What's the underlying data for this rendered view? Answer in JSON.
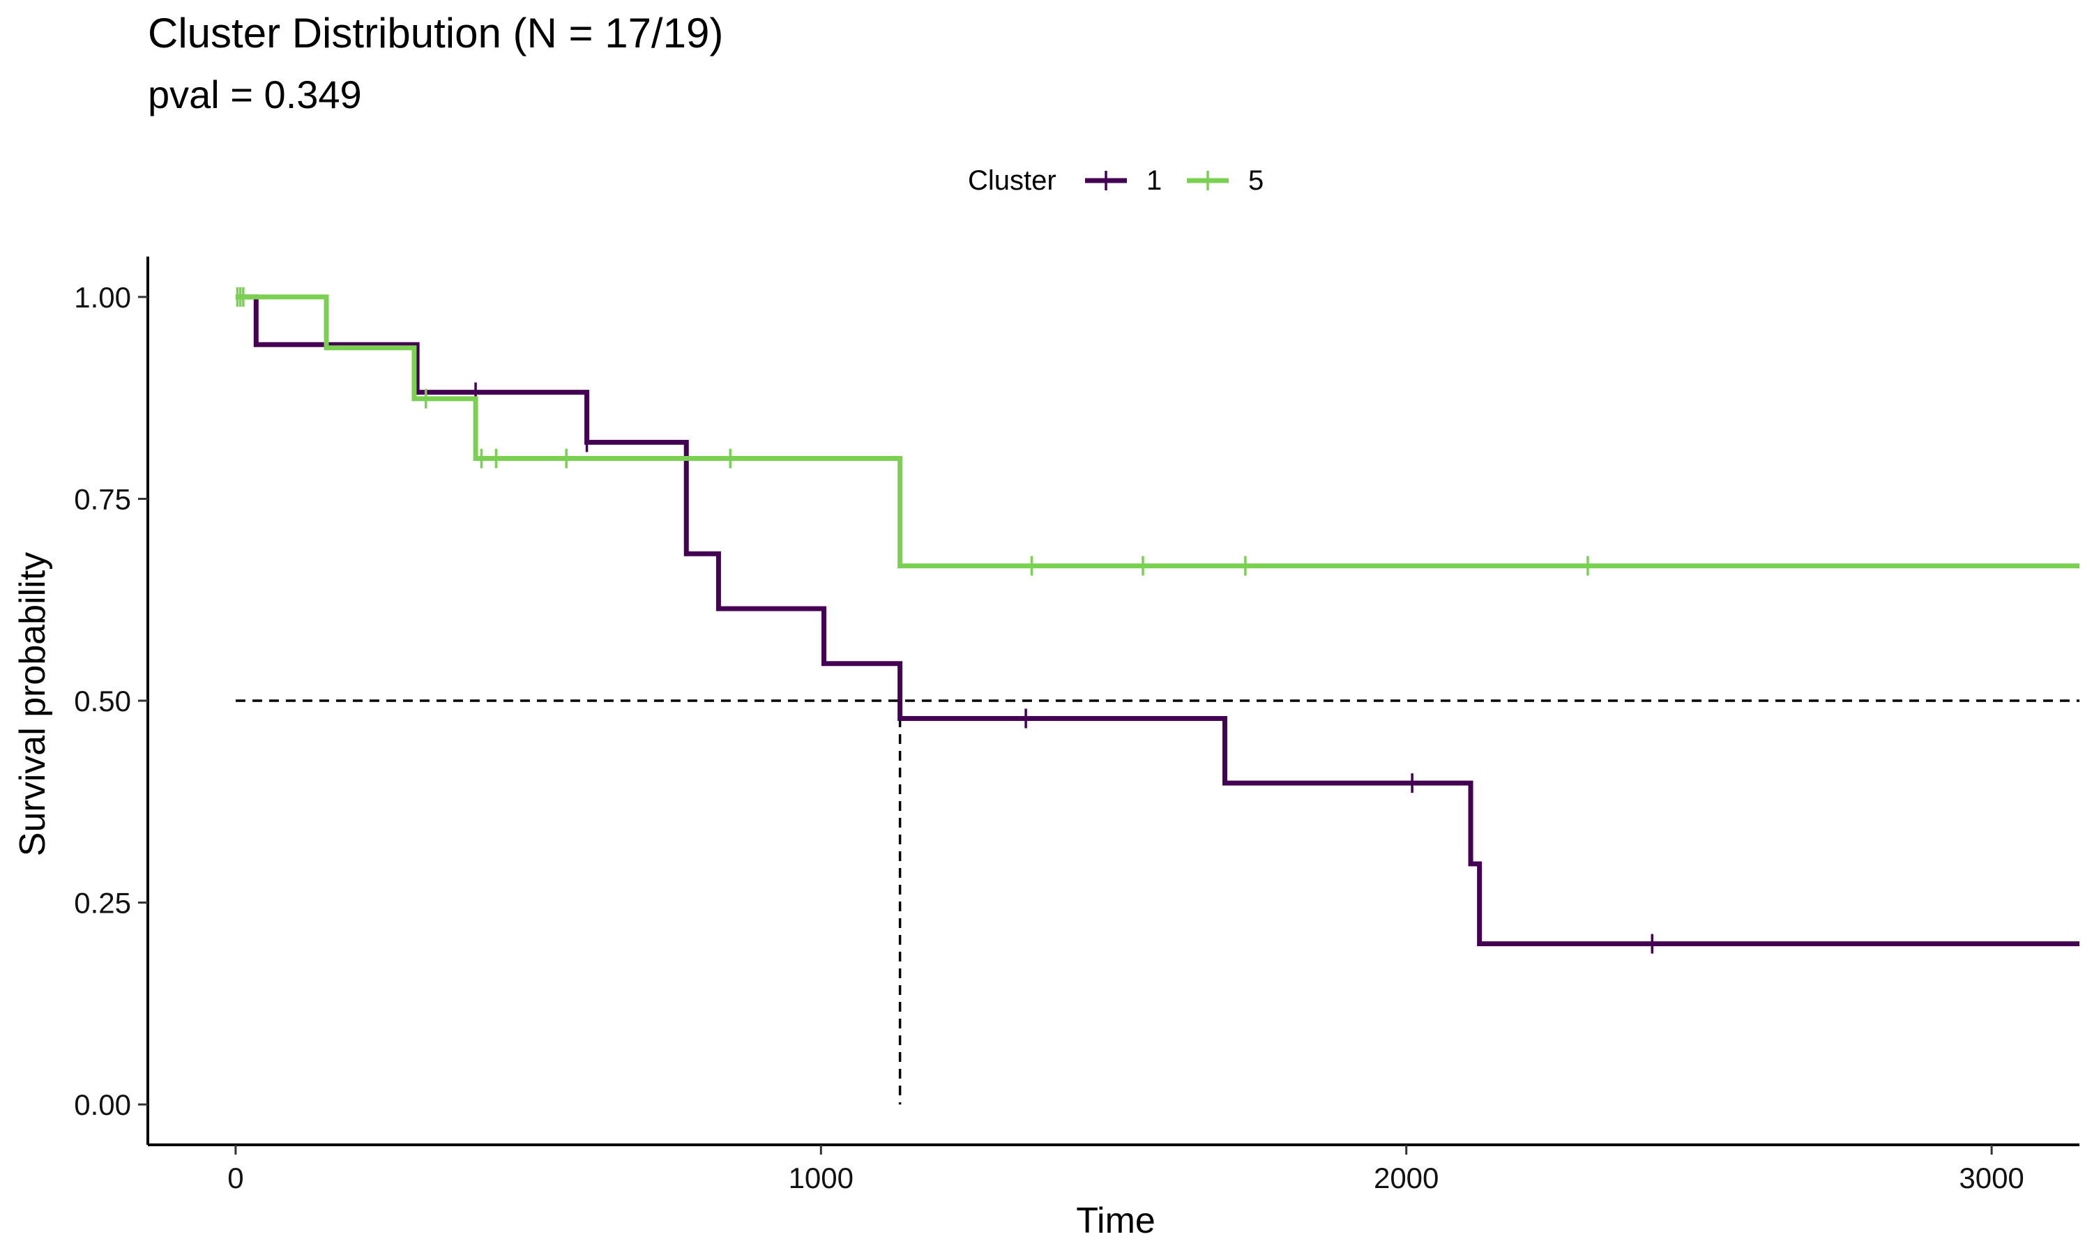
{
  "chart_data": {
    "type": "line",
    "subtype": "kaplan-meier",
    "title": "Cluster Distribution (N = 17/19)",
    "subtitle": "pval = 0.349",
    "xlabel": "Time",
    "ylabel": "Survival probability",
    "xlim": [
      -150,
      3150
    ],
    "ylim": [
      -0.05,
      1.05
    ],
    "x_ticks": [
      0,
      1000,
      2000,
      3000
    ],
    "y_ticks": [
      0.0,
      0.25,
      0.5,
      0.75,
      1.0
    ],
    "x_tick_labels": [
      "0",
      "1000",
      "2000",
      "3000"
    ],
    "y_tick_labels": [
      "0.00",
      "0.25",
      "0.50",
      "0.75",
      "1.00"
    ],
    "grid": false,
    "legend": {
      "title": "Cluster",
      "position": "top"
    },
    "median_line": {
      "y": 0.5,
      "x_end": 3150,
      "drop_x": 1135
    },
    "series": [
      {
        "name": "1",
        "color": "#440154",
        "steps": [
          [
            0,
            1.0
          ],
          [
            35,
            0.941
          ],
          [
            310,
            0.882
          ],
          [
            600,
            0.82
          ],
          [
            770,
            0.682
          ],
          [
            825,
            0.614
          ],
          [
            1005,
            0.546
          ],
          [
            1135,
            0.478
          ],
          [
            1690,
            0.398
          ],
          [
            2110,
            0.298
          ],
          [
            2125,
            0.199
          ],
          [
            3150,
            0.199
          ]
        ],
        "censor": [
          [
            410,
            0.882
          ],
          [
            600,
            0.82
          ],
          [
            1350,
            0.478
          ],
          [
            2010,
            0.398
          ],
          [
            2420,
            0.199
          ]
        ]
      },
      {
        "name": "5",
        "color": "#7AD151",
        "steps": [
          [
            0,
            1.0
          ],
          [
            155,
            0.937
          ],
          [
            305,
            0.874
          ],
          [
            410,
            0.8
          ],
          [
            1135,
            0.667
          ],
          [
            3150,
            0.667
          ]
        ],
        "censor": [
          [
            3,
            1.0
          ],
          [
            8,
            1.0
          ],
          [
            13,
            1.0
          ],
          [
            325,
            0.874
          ],
          [
            420,
            0.8
          ],
          [
            445,
            0.8
          ],
          [
            565,
            0.8
          ],
          [
            845,
            0.8
          ],
          [
            1360,
            0.667
          ],
          [
            1550,
            0.667
          ],
          [
            1725,
            0.667
          ],
          [
            2310,
            0.667
          ]
        ]
      }
    ]
  }
}
